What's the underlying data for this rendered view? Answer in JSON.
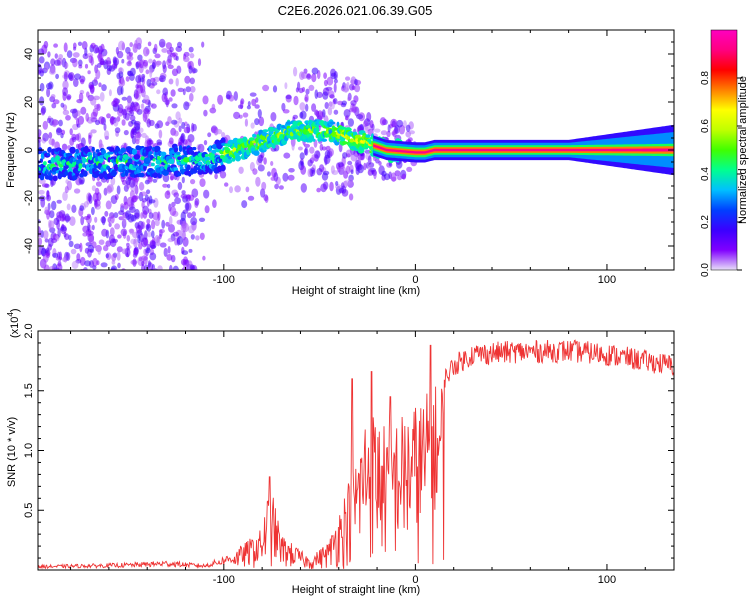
{
  "title": "C2E6.2026.021.06.39.G05",
  "chart_data": [
    {
      "type": "heatmap",
      "xlabel": "Height of straight line (km)",
      "ylabel": "Frequency (Hz)",
      "xlim": [
        -197,
        135
      ],
      "ylim": [
        -50,
        50
      ],
      "xticks": [
        -100,
        0,
        100
      ],
      "yticks": [
        -40,
        -20,
        0,
        20,
        40
      ],
      "colorbar": {
        "label": "Normalized spectral amplitude",
        "range": [
          0,
          1
        ],
        "ticks": [
          "0.0",
          "0.2",
          "0.4",
          "0.6",
          "0.8"
        ],
        "colors": [
          "#e8e0f8",
          "#8000ff",
          "#3a00ff",
          "#0040ff",
          "#00c0ff",
          "#00ff90",
          "#40ff00",
          "#c0ff00",
          "#ffff00",
          "#ff8000",
          "#ff0000",
          "#ff0080",
          "#ff00c0"
        ]
      },
      "ridge": [
        {
          "x": -197,
          "y": -6
        },
        {
          "x": -150,
          "y": -5
        },
        {
          "x": -110,
          "y": -4
        },
        {
          "x": -85,
          "y": 2
        },
        {
          "x": -65,
          "y": 8
        },
        {
          "x": -45,
          "y": 8
        },
        {
          "x": -30,
          "y": 4
        },
        {
          "x": -15,
          "y": 0
        },
        {
          "x": 0,
          "y": -1
        },
        {
          "x": 5,
          "y": -1
        },
        {
          "x": 10,
          "y": 0
        },
        {
          "x": 135,
          "y": 0
        }
      ]
    },
    {
      "type": "line",
      "xlabel": "Height of straight line (km)",
      "ylabel": "SNR (10 * v/v)",
      "yscale_label": "(x10",
      "yscale_exp": "4",
      "ylim": [
        0,
        20000
      ],
      "xlim": [
        -197,
        135
      ],
      "xticks": [
        -100,
        0,
        100
      ],
      "yticks": [
        {
          "value": 5000,
          "label": "0.5"
        },
        {
          "value": 10000,
          "label": "1.0"
        },
        {
          "value": 15000,
          "label": "1.5"
        },
        {
          "value": 20000,
          "label": "2.0"
        }
      ],
      "series": [
        {
          "name": "SNR",
          "color": "#ee3333",
          "envelope": [
            {
              "x": -197,
              "y": 400
            },
            {
              "x": -150,
              "y": 600
            },
            {
              "x": -130,
              "y": 800
            },
            {
              "x": -110,
              "y": 500
            },
            {
              "x": -95,
              "y": 1500
            },
            {
              "x": -80,
              "y": 3500
            },
            {
              "x": -76,
              "y": 7500
            },
            {
              "x": -70,
              "y": 3000
            },
            {
              "x": -55,
              "y": 1000
            },
            {
              "x": -45,
              "y": 2500
            },
            {
              "x": -38,
              "y": 6000
            },
            {
              "x": -30,
              "y": 10000
            },
            {
              "x": -25,
              "y": 14000
            },
            {
              "x": -20,
              "y": 13000
            },
            {
              "x": -15,
              "y": 12000
            },
            {
              "x": -8,
              "y": 13000
            },
            {
              "x": 0,
              "y": 14000
            },
            {
              "x": 10,
              "y": 15500
            },
            {
              "x": 20,
              "y": 18000
            },
            {
              "x": 30,
              "y": 19000
            },
            {
              "x": 50,
              "y": 19200
            },
            {
              "x": 80,
              "y": 19300
            },
            {
              "x": 100,
              "y": 19000
            },
            {
              "x": 120,
              "y": 18400
            },
            {
              "x": 135,
              "y": 18000
            }
          ],
          "spikes": [
            {
              "x": -76,
              "y": 7800
            },
            {
              "x": -33,
              "y": 16000
            },
            {
              "x": -23,
              "y": 16600
            },
            {
              "x": -13,
              "y": 14500
            },
            {
              "x": 8,
              "y": 18800
            },
            {
              "x": 11,
              "y": 6500
            }
          ]
        }
      ]
    }
  ]
}
